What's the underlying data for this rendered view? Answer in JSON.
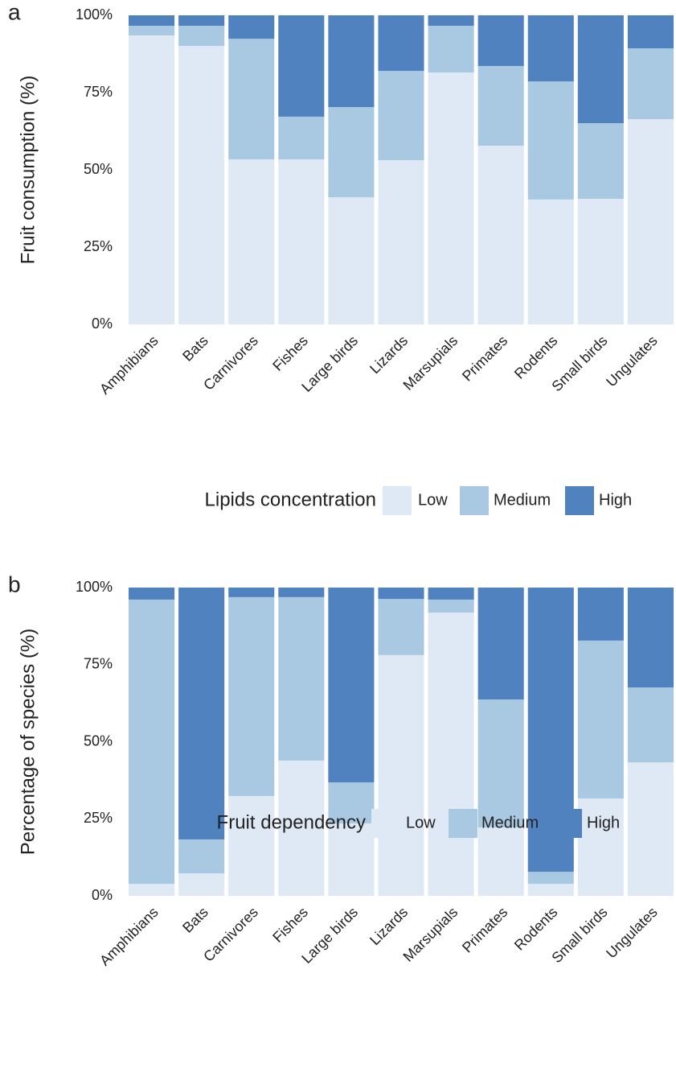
{
  "chart_data": [
    {
      "type": "bar",
      "stacked": true,
      "panel_label": "a",
      "ylabel": "Fruit consumption (%)",
      "categories": [
        "Amphibians",
        "Bats",
        "Carnivores",
        "Fishes",
        "Large birds",
        "Lizards",
        "Marsupials",
        "Primates",
        "Rodents",
        "Small birds",
        "Ungulates"
      ],
      "series": [
        {
          "name": "Low",
          "color": "#dfe9f5",
          "values": [
            93.5,
            90.1,
            53.4,
            53.4,
            41.1,
            53.1,
            81.5,
            57.8,
            40.4,
            40.6,
            66.4
          ]
        },
        {
          "name": "Medium",
          "color": "#a8c9e1",
          "values": [
            3.1,
            6.5,
            39.0,
            13.8,
            29.2,
            28.9,
            15.1,
            25.8,
            38.2,
            24.5,
            22.9
          ]
        },
        {
          "name": "High",
          "color": "#5082c0",
          "values": [
            3.4,
            3.4,
            7.6,
            32.8,
            29.7,
            18.0,
            3.4,
            16.4,
            21.4,
            34.9,
            10.7
          ]
        }
      ],
      "ylim": [
        0,
        100
      ],
      "yticks": [
        {
          "value": 0,
          "label": "0%"
        },
        {
          "value": 25,
          "label": "25%"
        },
        {
          "value": 50,
          "label": "50%"
        },
        {
          "value": 75,
          "label": "75%"
        },
        {
          "value": 100,
          "label": "100%"
        }
      ],
      "legend_title": "Lipids concentration",
      "legend": "bottom"
    },
    {
      "type": "bar",
      "stacked": true,
      "panel_label": "b",
      "ylabel": "Percentage of species (%)",
      "categories": [
        "Amphibians",
        "Bats",
        "Carnivores",
        "Fishes",
        "Large birds",
        "Lizards",
        "Marsupials",
        "Primates",
        "Rodents",
        "Small birds",
        "Ungulates"
      ],
      "series": [
        {
          "name": "Low",
          "color": "#dfe9f5",
          "values": [
            3.9,
            7.3,
            32.4,
            43.9,
            23.5,
            78.1,
            91.9,
            22.2,
            3.9,
            31.6,
            43.3
          ]
        },
        {
          "name": "Medium",
          "color": "#a8c9e1",
          "values": [
            92.2,
            11.0,
            64.5,
            53.0,
            13.3,
            18.2,
            4.2,
            41.5,
            3.9,
            51.2,
            24.3
          ]
        },
        {
          "name": "High",
          "color": "#5082c0",
          "values": [
            3.9,
            81.7,
            3.1,
            3.1,
            63.2,
            3.7,
            3.9,
            36.3,
            92.2,
            17.2,
            32.4
          ]
        }
      ],
      "ylim": [
        0,
        100
      ],
      "yticks": [
        {
          "value": 0,
          "label": "0%"
        },
        {
          "value": 25,
          "label": "25%"
        },
        {
          "value": 50,
          "label": "50%"
        },
        {
          "value": 75,
          "label": "75%"
        },
        {
          "value": 100,
          "label": "100%"
        }
      ],
      "legend_title": "Fruit dependency",
      "legend": "bottom"
    }
  ]
}
